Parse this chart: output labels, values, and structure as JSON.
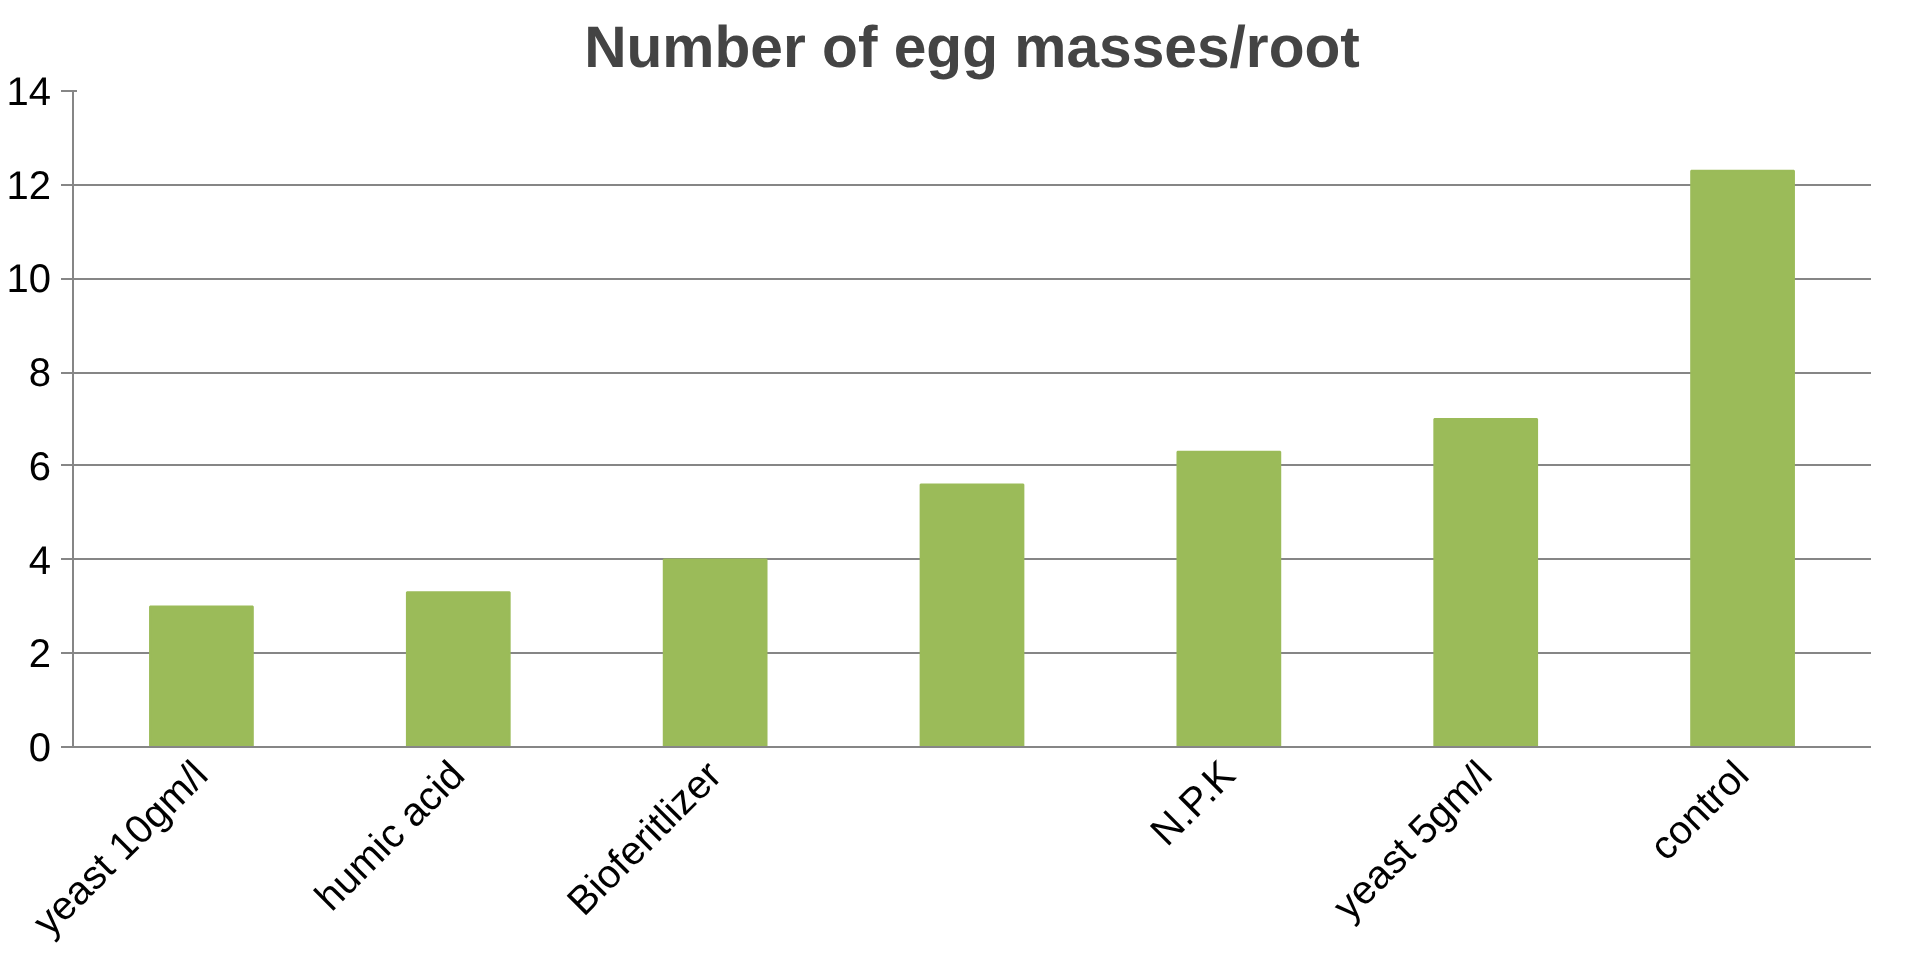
{
  "chart_data": {
    "type": "bar",
    "title": "Number of egg masses/root",
    "categories": [
      "yeast 10gm/l",
      "humic acid",
      "Bioferitlizer",
      null,
      "N.P.K",
      "yeast 5gm/l",
      "control"
    ],
    "values": [
      3,
      3.3,
      4,
      5.6,
      6.3,
      7,
      12.3
    ],
    "color": "#9bbb59",
    "ylim": [
      0,
      14
    ],
    "yticks": [
      0,
      2,
      4,
      6,
      8,
      10,
      12,
      14
    ],
    "grid": "y"
  }
}
